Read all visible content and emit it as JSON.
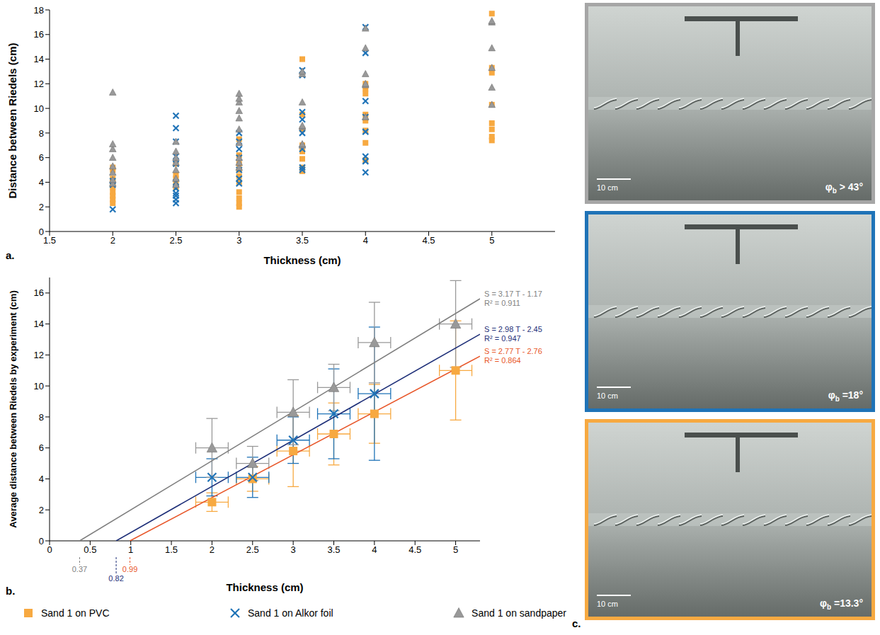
{
  "chart_data": [
    {
      "type": "scatter",
      "panel_label": "a.",
      "x_label": "Thickness (cm)",
      "y_label": "Distance between Riedels (cm)",
      "xlim": [
        1.5,
        5.5
      ],
      "xticks": [
        1.5,
        2,
        2.5,
        3,
        3.5,
        4,
        4.5,
        5
      ],
      "ylim": [
        0,
        18
      ],
      "yticks": [
        0,
        2,
        4,
        6,
        8,
        10,
        12,
        14,
        16,
        18
      ],
      "series": [
        {
          "name": "Sand 1 on PVC",
          "color": "#f7a941",
          "marker": "square",
          "x": [
            2,
            2,
            2,
            2,
            2,
            2,
            2,
            2,
            2,
            2.5,
            2.5,
            2.5,
            2.5,
            2.5,
            3,
            3,
            3,
            3,
            3,
            3,
            3,
            3,
            3,
            3,
            3.5,
            3.5,
            3.5,
            3.5,
            3.5,
            3.5,
            3.5,
            3.5,
            4,
            4,
            4,
            4,
            4,
            4,
            4,
            4,
            5,
            5,
            5,
            5,
            5,
            5,
            5,
            5
          ],
          "values": [
            2.3,
            2.6,
            2.9,
            3.2,
            3.6,
            4.0,
            4.3,
            5.0,
            5.2,
            3.6,
            4.0,
            4.3,
            4.6,
            5.5,
            2.0,
            2.3,
            2.7,
            3.2,
            4.0,
            4.5,
            5.0,
            5.5,
            6.2,
            7.5,
            4.9,
            5.2,
            5.9,
            6.5,
            7.0,
            8.3,
            9.5,
            14.0,
            5.8,
            7.2,
            8.2,
            9.0,
            9.5,
            11.2,
            11.6,
            12.0,
            7.4,
            7.7,
            8.3,
            8.8,
            10.3,
            12.9,
            13.3,
            17.7
          ]
        },
        {
          "name": "Sand 1 on Alkor foil",
          "color": "#1f73b7",
          "marker": "x",
          "x": [
            2,
            2,
            2,
            2.5,
            2.5,
            2.5,
            2.5,
            2.5,
            2.5,
            2.5,
            2.5,
            2.5,
            2.5,
            2.5,
            3,
            3,
            3,
            3,
            3,
            3,
            3,
            3.5,
            3.5,
            3.5,
            3.5,
            3.5,
            3.5,
            3.5,
            3.5,
            4,
            4,
            4,
            4,
            4,
            4,
            4,
            4
          ],
          "values": [
            1.8,
            3.8,
            4.1,
            2.3,
            2.6,
            2.9,
            3.1,
            3.5,
            4.0,
            5.5,
            6.1,
            7.3,
            8.4,
            9.4,
            3.9,
            4.3,
            5.0,
            6.0,
            6.7,
            7.3,
            8.0,
            5.0,
            5.2,
            6.7,
            8.0,
            9.1,
            9.7,
            12.7,
            13.1,
            4.8,
            5.7,
            6.1,
            8.1,
            9.3,
            10.6,
            14.5,
            16.6
          ]
        },
        {
          "name": "Sand 1 on sandpaper",
          "color": "#999999",
          "marker": "triangle",
          "x": [
            2,
            2,
            2,
            2,
            2,
            2,
            2,
            2,
            2.5,
            2.5,
            2.5,
            2.5,
            2.5,
            2.5,
            2.5,
            3,
            3,
            3,
            3,
            3,
            3,
            3,
            3,
            3,
            3,
            3.5,
            3.5,
            3.5,
            3.5,
            3.5,
            3.5,
            3.5,
            4,
            4,
            4,
            4,
            4,
            4,
            5,
            5,
            5,
            5,
            5,
            5
          ],
          "values": [
            3.9,
            4.2,
            4.8,
            5.3,
            6.0,
            6.7,
            7.1,
            11.3,
            3.8,
            4.3,
            5.0,
            5.6,
            6.0,
            6.5,
            7.3,
            5.2,
            5.6,
            6.0,
            7.2,
            8.3,
            9.2,
            9.8,
            10.5,
            10.8,
            11.2,
            7.0,
            7.1,
            8.5,
            8.6,
            10.5,
            12.8,
            13.0,
            9.3,
            11.9,
            12.0,
            12.8,
            14.9,
            16.5,
            10.3,
            11.7,
            13.3,
            14.9,
            17.0,
            17.1
          ]
        }
      ]
    },
    {
      "type": "scatter",
      "panel_label": "b.",
      "x_label": "Thickness (cm)",
      "y_label": "Average distance between Riedels by experiment (cm)",
      "xlim": [
        0,
        5.3
      ],
      "xticks": [
        0,
        0.5,
        1,
        1.5,
        2,
        2.5,
        3,
        3.5,
        4,
        4.5,
        5
      ],
      "ylim": [
        0,
        17
      ],
      "yticks": [
        0,
        2,
        4,
        6,
        8,
        10,
        12,
        14,
        16
      ],
      "legend": "bottom",
      "series": [
        {
          "name": "Sand 1 on PVC",
          "color": "#f7a941",
          "marker": "square",
          "x": [
            2,
            2.5,
            3,
            3.5,
            4,
            5
          ],
          "values": [
            2.5,
            4.0,
            5.8,
            6.9,
            8.2,
            11.0
          ],
          "x_error": [
            0.2,
            0.2,
            0.2,
            0.2,
            0.2,
            0.2
          ],
          "y_error": [
            0.6,
            0.8,
            2.3,
            2.0,
            1.9,
            3.2
          ],
          "fit": {
            "type": "line",
            "color": "#e8572a",
            "x": [
              0.99,
              5.3
            ],
            "values": [
              0,
              11.92
            ],
            "equation": "S = 2.77 T - 2.76",
            "r2": "R² = 0.864",
            "x_intercept": 0.99
          }
        },
        {
          "name": "Sand 1 on Alkor foil",
          "color": "#1f73b7",
          "marker": "x",
          "x": [
            2,
            2.5,
            3,
            3.5,
            4
          ],
          "values": [
            4.1,
            4.1,
            6.5,
            8.2,
            9.5
          ],
          "x_error": [
            0.2,
            0.2,
            0.2,
            0.2,
            0.2
          ],
          "y_error": [
            1.2,
            1.3,
            1.5,
            2.9,
            4.3
          ],
          "fit": {
            "type": "line",
            "color": "#1e2f78",
            "x": [
              0.82,
              5.3
            ],
            "values": [
              0,
              13.34
            ],
            "equation": "S = 2.98 T - 2.45",
            "r2": "R² = 0.947",
            "x_intercept": 0.82
          }
        },
        {
          "name": "Sand 1 on sandpaper",
          "color": "#999999",
          "marker": "triangle",
          "x": [
            2,
            2.5,
            3,
            3.5,
            4,
            5
          ],
          "values": [
            6.0,
            5.0,
            8.3,
            9.9,
            12.8,
            14.0
          ],
          "x_error": [
            0.2,
            0.2,
            0.2,
            0.2,
            0.2,
            0.2
          ],
          "y_error": [
            1.9,
            1.1,
            2.1,
            1.5,
            2.6,
            2.8
          ],
          "fit": {
            "type": "line",
            "color": "#7f7f7f",
            "x": [
              0.37,
              5.3
            ],
            "values": [
              0,
              15.63
            ],
            "equation": "S = 3.17 T - 1.17",
            "r2": "R² = 0.911",
            "x_intercept": 0.37
          }
        }
      ]
    }
  ],
  "panel_c": {
    "panel_label": "c.",
    "photos": [
      {
        "color": "#a6a6a6",
        "scale_label": "10 cm",
        "phi": [
          "φ",
          "b",
          " > 43°"
        ]
      },
      {
        "color": "#1f73b7",
        "scale_label": "10 cm",
        "phi": [
          "φ",
          "b",
          " =18°"
        ]
      },
      {
        "color": "#f7a941",
        "scale_label": "10 cm",
        "phi": [
          "φ",
          "b",
          " =13.3°"
        ]
      }
    ]
  }
}
